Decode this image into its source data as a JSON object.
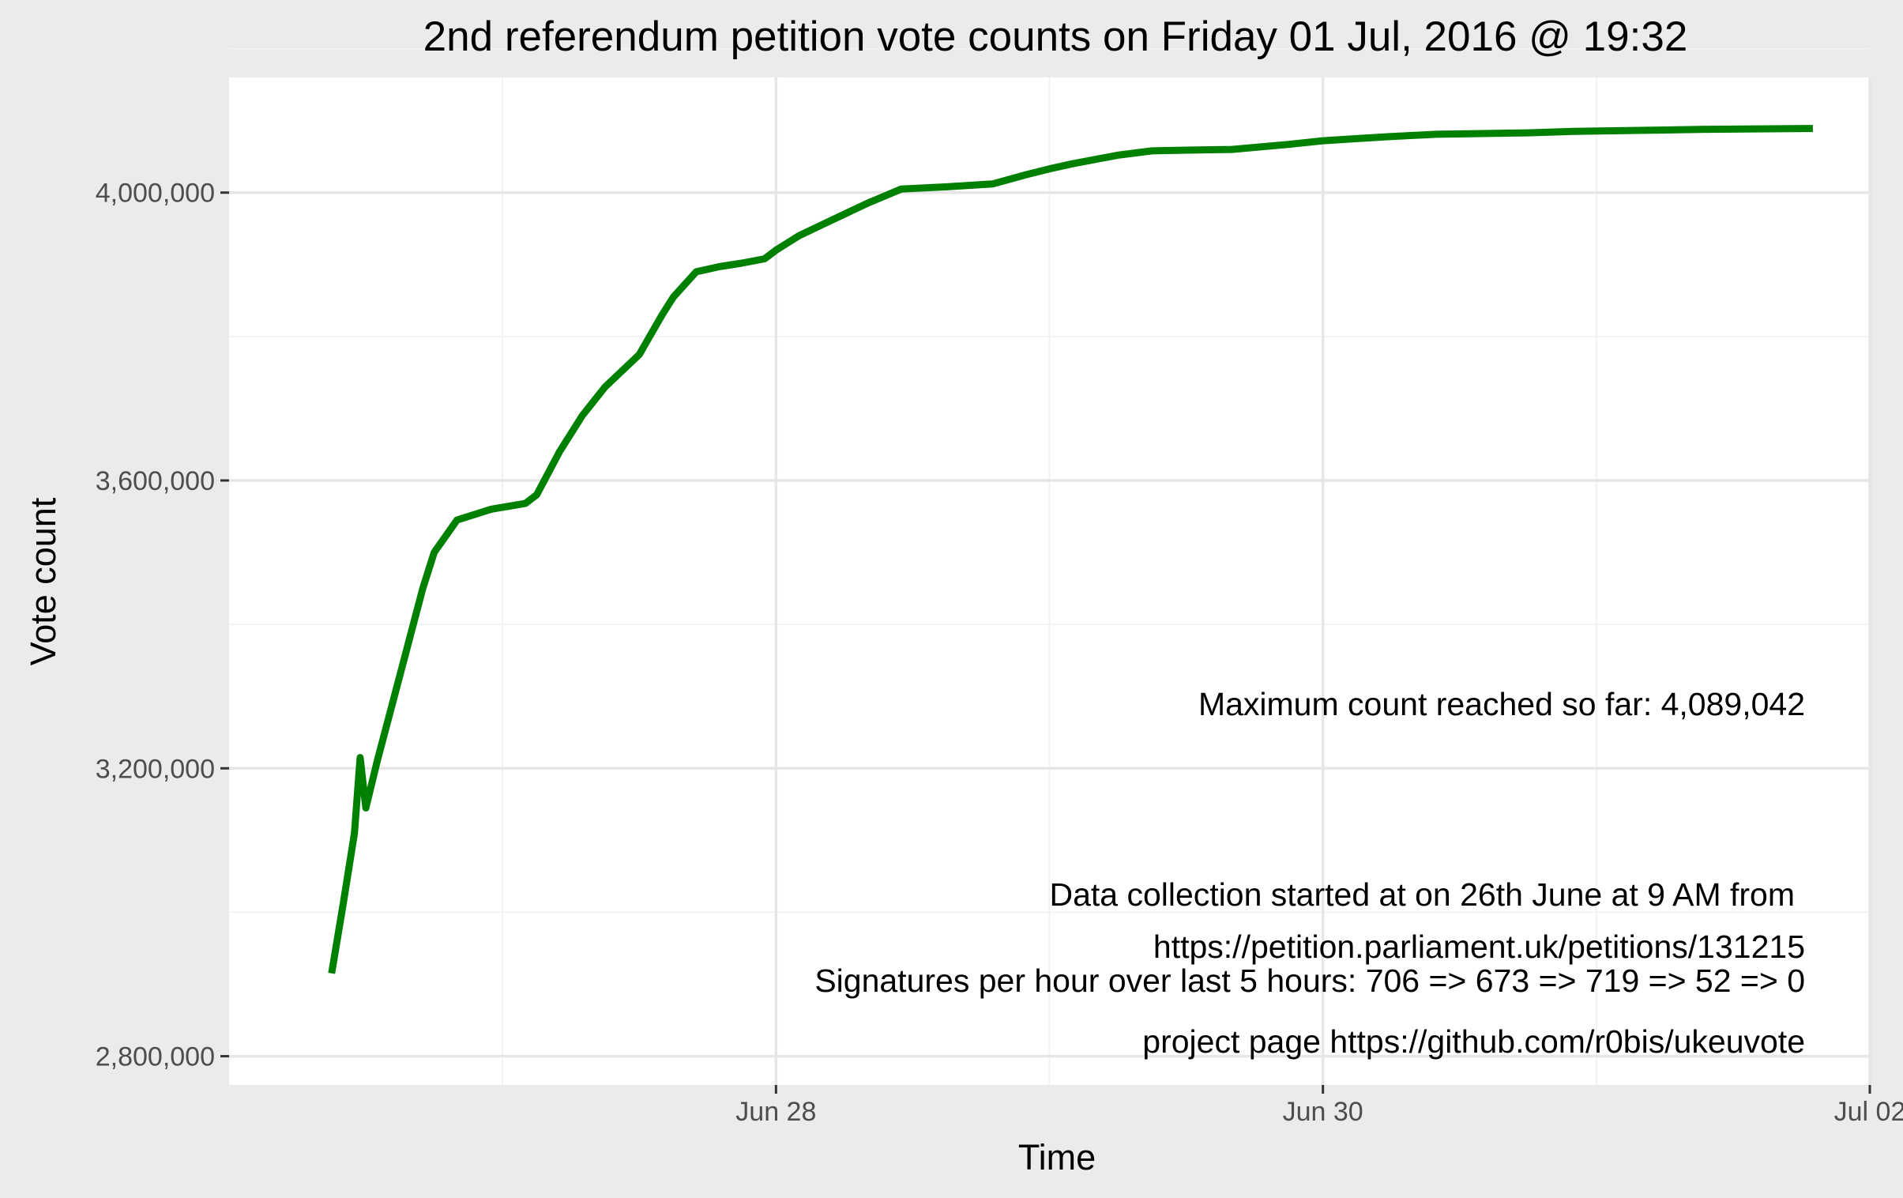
{
  "chart_data": {
    "type": "line",
    "title": "2nd referendum petition vote counts on Friday 01 Jul, 2016 @ 19:32",
    "xlabel": "Time",
    "ylabel": "Vote count",
    "x_ticks": [
      "Jun 28",
      "Jun 30",
      "Jul 02"
    ],
    "y_ticks": [
      "2,800,000",
      "3,200,000",
      "3,600,000",
      "4,000,000"
    ],
    "xlim": [
      "2016-06-26 00:00",
      "2016-07-02 00:00"
    ],
    "ylim": [
      2760000,
      4160000
    ],
    "grid": true,
    "line_color": "#008000",
    "annotation_color": "#8b0000",
    "series": [
      {
        "x": [
          "2016-06-26 09:00",
          "2016-06-26 10:00",
          "2016-06-26 11:00",
          "2016-06-26 11:30",
          "2016-06-26 12:00",
          "2016-06-26 13:00",
          "2016-06-26 15:00",
          "2016-06-26 17:00",
          "2016-06-26 18:00",
          "2016-06-26 20:00",
          "2016-06-26 23:00",
          "2016-06-27 02:00",
          "2016-06-27 03:00",
          "2016-06-27 05:00",
          "2016-06-27 07:00",
          "2016-06-27 09:00",
          "2016-06-27 12:00",
          "2016-06-27 14:00",
          "2016-06-27 15:00",
          "2016-06-27 17:00",
          "2016-06-27 19:00",
          "2016-06-27 21:00",
          "2016-06-27 23:00",
          "2016-06-28 00:00",
          "2016-06-28 02:00",
          "2016-06-28 04:00",
          "2016-06-28 06:00",
          "2016-06-28 08:00",
          "2016-06-28 11:00",
          "2016-06-28 15:00",
          "2016-06-28 19:00",
          "2016-06-28 22:00",
          "2016-06-29 00:00",
          "2016-06-29 02:00",
          "2016-06-29 04:00",
          "2016-06-29 06:00",
          "2016-06-29 09:00",
          "2016-06-29 12:00",
          "2016-06-29 16:00",
          "2016-06-29 21:00",
          "2016-06-30 00:00",
          "2016-06-30 03:00",
          "2016-06-30 06:00",
          "2016-06-30 10:00",
          "2016-06-30 14:00",
          "2016-06-30 18:00",
          "2016-06-30 22:00",
          "2016-07-01 02:00",
          "2016-07-01 06:00",
          "2016-07-01 10:00",
          "2016-07-01 14:00",
          "2016-07-01 19:00"
        ],
        "y": [
          2915000,
          3010000,
          3110000,
          3215000,
          3145000,
          3210000,
          3330000,
          3450000,
          3500000,
          3545000,
          3560000,
          3568000,
          3580000,
          3640000,
          3690000,
          3730000,
          3775000,
          3830000,
          3855000,
          3890000,
          3897000,
          3902000,
          3908000,
          3920000,
          3940000,
          3955000,
          3970000,
          3985000,
          4005000,
          4008000,
          4012000,
          4025000,
          4033000,
          4040000,
          4046000,
          4052000,
          4058000,
          4059000,
          4060000,
          4067000,
          4072000,
          4075000,
          4078000,
          4081000,
          4082000,
          4083000,
          4085000,
          4086000,
          4087000,
          4088000,
          4088500,
          4089042
        ]
      }
    ],
    "annotations": {
      "max_count": "Maximum count reached so far:  4,089,042",
      "collection_line1": "Data collection started at on 26th June at 9 AM from",
      "collection_line2": "https://petition.parliament.uk/petitions/131215",
      "rates": "Signatures per hour over last 5 hours:  706 => 673 => 719 =>  52 =>   0",
      "project": "project page https://github.com/r0bis/ukeuvote"
    }
  }
}
